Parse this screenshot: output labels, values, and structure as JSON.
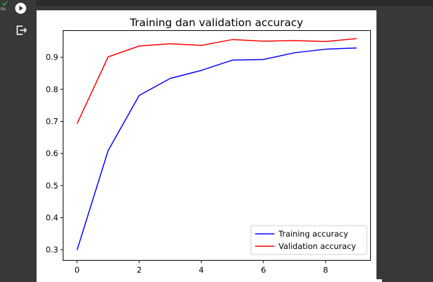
{
  "cell": {
    "status_time": "0s",
    "icons": {
      "status": "check-icon",
      "run": "play-circle-icon",
      "output": "output-exit-icon"
    },
    "status_color": "#34a853"
  },
  "chart_data": {
    "type": "line",
    "title": "Training dan validation accuracy",
    "xlabel": "",
    "ylabel": "",
    "x": [
      0,
      1,
      2,
      3,
      4,
      5,
      6,
      7,
      8,
      9
    ],
    "xticks": [
      0,
      2,
      4,
      6,
      8
    ],
    "yticks": [
      0.3,
      0.4,
      0.5,
      0.6,
      0.7,
      0.8,
      0.9
    ],
    "xlim": [
      -0.45,
      9.45
    ],
    "ylim": [
      0.267,
      0.983
    ],
    "grid": false,
    "legend_position": "lower right",
    "series": [
      {
        "name": "Training accuracy",
        "color": "#0000ff",
        "values": [
          0.299,
          0.609,
          0.781,
          0.834,
          0.859,
          0.891,
          0.893,
          0.914,
          0.925,
          0.929
        ]
      },
      {
        "name": "Validation accuracy",
        "color": "#ff0000",
        "values": [
          0.693,
          0.901,
          0.935,
          0.942,
          0.937,
          0.955,
          0.95,
          0.952,
          0.949,
          0.958
        ]
      }
    ]
  }
}
